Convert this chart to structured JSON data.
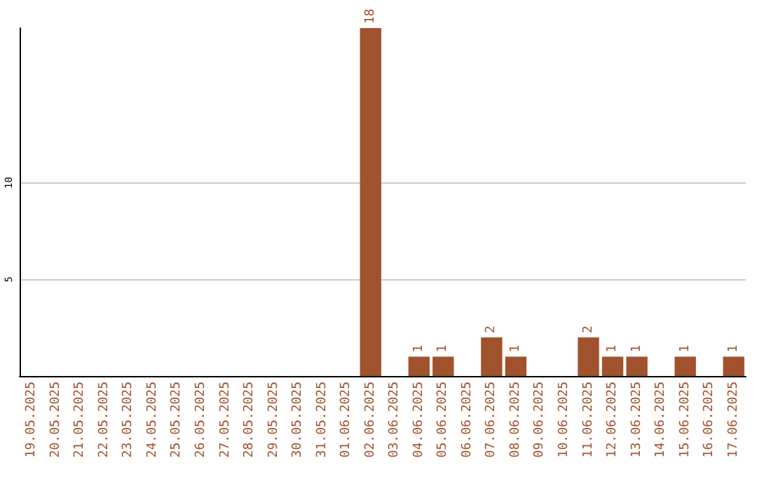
{
  "chart_data": {
    "type": "bar",
    "categories": [
      "19.05.2025",
      "20.05.2025",
      "21.05.2025",
      "22.05.2025",
      "23.05.2025",
      "24.05.2025",
      "25.05.2025",
      "26.05.2025",
      "27.05.2025",
      "28.05.2025",
      "29.05.2025",
      "30.05.2025",
      "31.05.2025",
      "01.06.2025",
      "02.06.2025",
      "03.06.2025",
      "04.06.2025",
      "05.06.2025",
      "06.06.2025",
      "07.06.2025",
      "08.06.2025",
      "09.06.2025",
      "10.06.2025",
      "11.06.2025",
      "12.06.2025",
      "13.06.2025",
      "14.06.2025",
      "15.06.2025",
      "16.06.2025",
      "17.06.2025"
    ],
    "values": [
      0,
      0,
      0,
      0,
      0,
      0,
      0,
      0,
      0,
      0,
      0,
      0,
      0,
      0,
      18,
      0,
      1,
      1,
      0,
      2,
      1,
      0,
      0,
      2,
      1,
      1,
      0,
      1,
      0,
      1
    ],
    "value_labels": [
      null,
      null,
      null,
      null,
      null,
      null,
      null,
      null,
      null,
      null,
      null,
      null,
      null,
      null,
      "18",
      null,
      "1",
      "1",
      null,
      "2",
      "1",
      null,
      null,
      "2",
      "1",
      "1",
      null,
      "1",
      null,
      "1"
    ],
    "color": "#a0522d",
    "ylim": [
      0,
      18
    ],
    "yticks": [
      5,
      10
    ],
    "grid": "y"
  }
}
